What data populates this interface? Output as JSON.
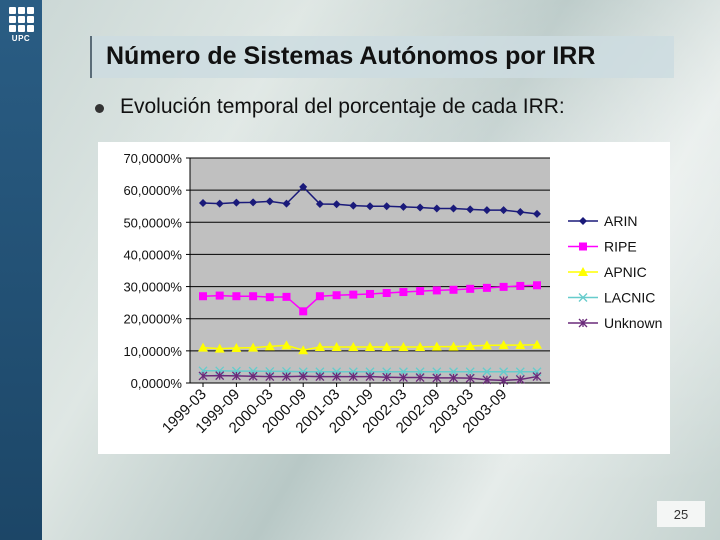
{
  "logo": {
    "text": "UPC"
  },
  "title": "Número de Sistemas Autónomos por IRR",
  "bullet": "Evolución temporal del porcentaje de cada IRR:",
  "page_number": "25",
  "colors": {
    "ARIN": "#1a1a7a",
    "RIPE": "#ff00ff",
    "APNIC": "#ffff00",
    "LACNIC": "#66cccc",
    "Unknown": "#6a2a7a",
    "plot_bg": "#c0c0c0"
  },
  "chart_data": {
    "type": "line",
    "title": "",
    "xlabel": "",
    "ylabel": "",
    "ylim": [
      0,
      70
    ],
    "yticks": [
      "0,0000%",
      "10,0000%",
      "20,0000%",
      "30,0000%",
      "40,0000%",
      "50,0000%",
      "60,0000%",
      "70,0000%"
    ],
    "x_tick_labels": [
      "1999-03",
      "1999-09",
      "2000-03",
      "2000-09",
      "2001-03",
      "2001-09",
      "2002-03",
      "2002-09",
      "2003-03",
      "2003-09"
    ],
    "n_points": 21,
    "grid": true,
    "legend_position": "right",
    "series": [
      {
        "name": "ARIN",
        "marker": "diamond",
        "values": [
          56,
          55.8,
          56.1,
          56.2,
          56.5,
          55.8,
          61,
          55.7,
          55.6,
          55.2,
          55,
          55,
          54.8,
          54.6,
          54.3,
          54.3,
          54,
          53.8,
          53.8,
          53.2,
          52.6
        ]
      },
      {
        "name": "RIPE",
        "marker": "square",
        "values": [
          27,
          27.2,
          27,
          27,
          26.7,
          26.8,
          22.3,
          27,
          27.3,
          27.5,
          27.7,
          28,
          28.3,
          28.6,
          28.8,
          29,
          29.3,
          29.6,
          29.9,
          30.2,
          30.4
        ]
      },
      {
        "name": "APNIC",
        "marker": "triangle",
        "values": [
          11,
          10.7,
          10.9,
          11,
          11.4,
          11.7,
          10.2,
          11.2,
          11.2,
          11.2,
          11.2,
          11.2,
          11.2,
          11.2,
          11.3,
          11.3,
          11.5,
          11.7,
          11.8,
          11.8,
          11.9
        ]
      },
      {
        "name": "LACNIC",
        "marker": "x",
        "values": [
          3.8,
          3.8,
          3.7,
          3.7,
          3.6,
          3.6,
          3.5,
          3.5,
          3.5,
          3.5,
          3.5,
          3.5,
          3.5,
          3.5,
          3.5,
          3.5,
          3.5,
          3.5,
          3.5,
          3.5,
          3.5
        ]
      },
      {
        "name": "Unknown",
        "marker": "star",
        "values": [
          2.2,
          2.3,
          2.2,
          2.1,
          2,
          2,
          2.1,
          2,
          2,
          2,
          2,
          1.8,
          1.7,
          1.7,
          1.6,
          1.6,
          1.5,
          1,
          0.8,
          1.1,
          2
        ]
      }
    ]
  }
}
